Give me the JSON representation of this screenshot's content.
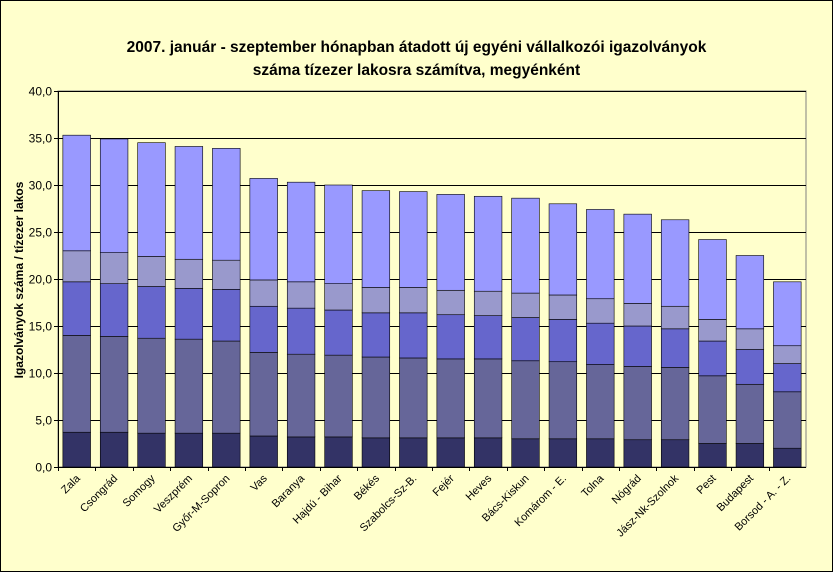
{
  "chart_data": {
    "type": "bar",
    "stacked": true,
    "title_line1": "2007. január - szeptember hónapban átadott új egyéni vállalkozói  igazolványok",
    "title_line2": "száma tízezer lakosra számítva, megyénként",
    "xlabel": "",
    "ylabel": "Igazolványok száma / tízezer lakos",
    "ylim": [
      0,
      40
    ],
    "yticks": [
      "0,0",
      "5,0",
      "10,0",
      "15,0",
      "20,0",
      "25,0",
      "30,0",
      "35,0",
      "40,0"
    ],
    "grid": true,
    "categories": [
      "Zala",
      "Csongrád",
      "Somogy",
      "Veszprém",
      "Győr-M-Sopron",
      "Vas",
      "Baranya",
      "Hajdú - Bihar",
      "Békés",
      "Szabolcs-Sz-B.",
      "Fejér",
      "Heves",
      "Bács-Kiskun",
      "Komárom - E.",
      "Tolna",
      "Nógrád",
      "Jász-Nk-Szolnok",
      "Pest",
      "Budapest",
      "Borsod - A. - Z."
    ],
    "totals": [
      35.3,
      34.9,
      34.5,
      34.1,
      33.9,
      30.7,
      30.3,
      30.0,
      29.4,
      29.3,
      29.0,
      28.8,
      28.6,
      28.0,
      27.4,
      26.9,
      26.3,
      24.2,
      22.5,
      19.7
    ],
    "series": [
      {
        "values": [
          3.7,
          3.7,
          3.6,
          3.6,
          3.6,
          3.3,
          3.2,
          3.2,
          3.1,
          3.1,
          3.1,
          3.1,
          3.0,
          3.0,
          3.0,
          2.9,
          2.9,
          2.5,
          2.5,
          2.0
        ],
        "color": "#333366"
      },
      {
        "values": [
          10.3,
          10.2,
          10.1,
          10.0,
          9.8,
          8.9,
          8.8,
          8.7,
          8.6,
          8.5,
          8.4,
          8.4,
          8.3,
          8.2,
          7.9,
          7.8,
          7.7,
          7.2,
          6.3,
          6.0
        ],
        "color": "#666699"
      },
      {
        "values": [
          5.7,
          5.6,
          5.5,
          5.4,
          5.5,
          4.9,
          4.9,
          4.8,
          4.7,
          4.8,
          4.7,
          4.6,
          4.6,
          4.5,
          4.4,
          4.3,
          4.1,
          3.7,
          3.7,
          3.0
        ],
        "color": "#6666cc"
      },
      {
        "values": [
          3.3,
          3.3,
          3.2,
          3.1,
          3.1,
          2.8,
          2.8,
          2.8,
          2.7,
          2.7,
          2.6,
          2.6,
          2.6,
          2.6,
          2.6,
          2.4,
          2.4,
          2.3,
          2.2,
          1.9
        ],
        "color": "#9999cc"
      },
      {
        "values": [
          12.3,
          12.1,
          12.1,
          12.0,
          11.9,
          10.8,
          10.6,
          10.5,
          10.3,
          10.2,
          10.2,
          10.1,
          10.1,
          9.7,
          9.5,
          9.5,
          9.2,
          8.5,
          7.8,
          6.8
        ],
        "color": "#9999ff"
      }
    ]
  }
}
